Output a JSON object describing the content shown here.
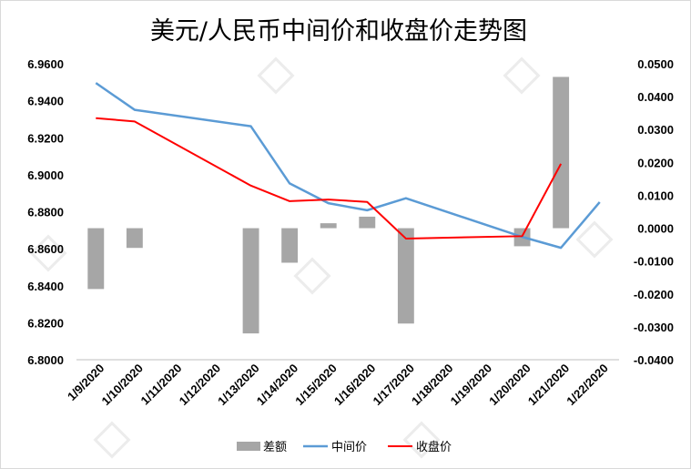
{
  "chart_data": {
    "type": "bar+line",
    "title": "美元/人民币中间价和收盘价走势图",
    "categories": [
      "1/9/2020",
      "1/10/2020",
      "1/11/2020",
      "1/12/2020",
      "1/13/2020",
      "1/14/2020",
      "1/15/2020",
      "1/16/2020",
      "1/17/2020",
      "1/18/2020",
      "1/19/2020",
      "1/20/2020",
      "1/21/2020",
      "1/22/2020"
    ],
    "y_left": {
      "ylim": [
        6.8,
        6.96
      ],
      "ticks": [
        "6.9600",
        "6.9400",
        "6.9200",
        "6.9000",
        "6.8800",
        "6.8600",
        "6.8400",
        "6.8200",
        "6.8000"
      ]
    },
    "y_right": {
      "ylim": [
        -0.04,
        0.05
      ],
      "ticks": [
        "0.0500",
        "0.0400",
        "0.0300",
        "0.0200",
        "0.0100",
        "0.0000",
        "-0.0100",
        "-0.0200",
        "-0.0300",
        "-0.0400"
      ]
    },
    "series": [
      {
        "name": "差额",
        "type": "bar",
        "axis": "right",
        "color": "#a6a6a6",
        "points": [
          [
            0,
            -0.0185
          ],
          [
            1,
            -0.006
          ],
          [
            4,
            -0.032
          ],
          [
            5,
            -0.0105
          ],
          [
            6,
            0.0015
          ],
          [
            7,
            0.0035
          ],
          [
            8,
            -0.029
          ],
          [
            11,
            -0.0055
          ],
          [
            12,
            0.046
          ]
        ]
      },
      {
        "name": "中间价",
        "type": "line",
        "axis": "left",
        "color": "#5b9bd5",
        "points": [
          [
            0,
            6.9496
          ],
          [
            1,
            6.9351
          ],
          [
            4,
            6.9262
          ],
          [
            5,
            6.8953
          ],
          [
            6,
            6.8846
          ],
          [
            7,
            6.8808
          ],
          [
            8,
            6.8873
          ],
          [
            11,
            6.8664
          ],
          [
            12,
            6.8605
          ],
          [
            13,
            6.8852
          ]
        ]
      },
      {
        "name": "收盘价",
        "type": "line",
        "axis": "left",
        "color": "#ff0000",
        "points": [
          [
            0,
            6.9306
          ],
          [
            1,
            6.9288
          ],
          [
            4,
            6.8941
          ],
          [
            5,
            6.8857
          ],
          [
            6,
            6.8866
          ],
          [
            7,
            6.8853
          ],
          [
            8,
            6.8655
          ],
          [
            11,
            6.8668
          ],
          [
            12,
            6.9059
          ]
        ]
      }
    ],
    "legend": {
      "position": "bottom",
      "items": [
        "差额",
        "中间价",
        "收盘价"
      ]
    },
    "grid": false
  }
}
